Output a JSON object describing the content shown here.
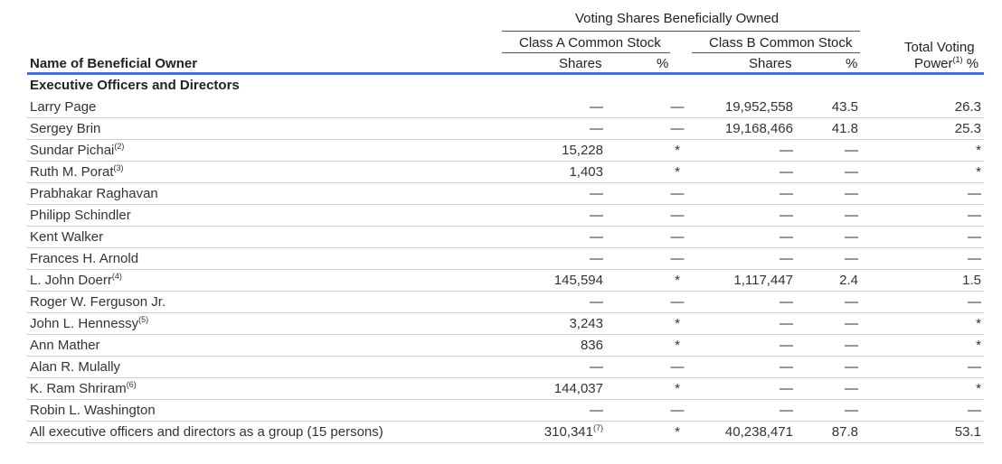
{
  "header": {
    "group_title": "Voting Shares Beneficially Owned",
    "class_a_title": "Class A Common Stock",
    "class_b_title": "Class B Common Stock",
    "col_name": "Name of Beneficial Owner",
    "col_shares": "Shares",
    "col_pct": "%",
    "col_total_line1": "Total Voting",
    "col_total_line2": "Power",
    "col_total_note": "(1)",
    "col_total_pct": " %"
  },
  "section_label": "Executive Officers and Directors",
  "rows": [
    {
      "name": "Larry Page",
      "note": "",
      "a_shares": "—",
      "a_note": "",
      "a_pct": "—",
      "b_shares": "19,952,558",
      "b_pct": "43.5",
      "total": "26.3"
    },
    {
      "name": "Sergey Brin",
      "note": "",
      "a_shares": "—",
      "a_note": "",
      "a_pct": "—",
      "b_shares": "19,168,466",
      "b_pct": "41.8",
      "total": "25.3"
    },
    {
      "name": "Sundar Pichai",
      "note": "(2)",
      "a_shares": "15,228",
      "a_note": "",
      "a_pct": "*",
      "b_shares": "—",
      "b_pct": "—",
      "total": "*"
    },
    {
      "name": "Ruth M. Porat",
      "note": "(3)",
      "a_shares": "1,403",
      "a_note": "",
      "a_pct": "*",
      "b_shares": "—",
      "b_pct": "—",
      "total": "*"
    },
    {
      "name": "Prabhakar Raghavan",
      "note": "",
      "a_shares": "—",
      "a_note": "",
      "a_pct": "—",
      "b_shares": "—",
      "b_pct": "—",
      "total": "—"
    },
    {
      "name": "Philipp Schindler",
      "note": "",
      "a_shares": "—",
      "a_note": "",
      "a_pct": "—",
      "b_shares": "—",
      "b_pct": "—",
      "total": "—"
    },
    {
      "name": "Kent Walker",
      "note": "",
      "a_shares": "—",
      "a_note": "",
      "a_pct": "—",
      "b_shares": "—",
      "b_pct": "—",
      "total": "—"
    },
    {
      "name": "Frances H. Arnold",
      "note": "",
      "a_shares": "—",
      "a_note": "",
      "a_pct": "—",
      "b_shares": "—",
      "b_pct": "—",
      "total": "—"
    },
    {
      "name": "L. John Doerr",
      "note": "(4)",
      "a_shares": "145,594",
      "a_note": "",
      "a_pct": "*",
      "b_shares": "1,117,447",
      "b_pct": "2.4",
      "total": "1.5"
    },
    {
      "name": "Roger W. Ferguson Jr.",
      "note": "",
      "a_shares": "—",
      "a_note": "",
      "a_pct": "—",
      "b_shares": "—",
      "b_pct": "—",
      "total": "—"
    },
    {
      "name": "John L. Hennessy",
      "note": "(5)",
      "a_shares": "3,243",
      "a_note": "",
      "a_pct": "*",
      "b_shares": "—",
      "b_pct": "—",
      "total": "*"
    },
    {
      "name": "Ann Mather",
      "note": "",
      "a_shares": "836",
      "a_note": "",
      "a_pct": "*",
      "b_shares": "—",
      "b_pct": "—",
      "total": "*"
    },
    {
      "name": "Alan R. Mulally",
      "note": "",
      "a_shares": "—",
      "a_note": "",
      "a_pct": "—",
      "b_shares": "—",
      "b_pct": "—",
      "total": "—"
    },
    {
      "name": "K. Ram Shriram",
      "note": "(6)",
      "a_shares": "144,037",
      "a_note": "",
      "a_pct": "*",
      "b_shares": "—",
      "b_pct": "—",
      "total": "*"
    },
    {
      "name": "Robin L. Washington",
      "note": "",
      "a_shares": "—",
      "a_note": "",
      "a_pct": "—",
      "b_shares": "—",
      "b_pct": "—",
      "total": "—"
    },
    {
      "name": "All executive officers and directors as a group (15 persons)",
      "note": "",
      "a_shares": "310,341",
      "a_note": "(7)",
      "a_pct": "*",
      "b_shares": "40,238,471",
      "b_pct": "87.8",
      "total": "53.1"
    }
  ]
}
